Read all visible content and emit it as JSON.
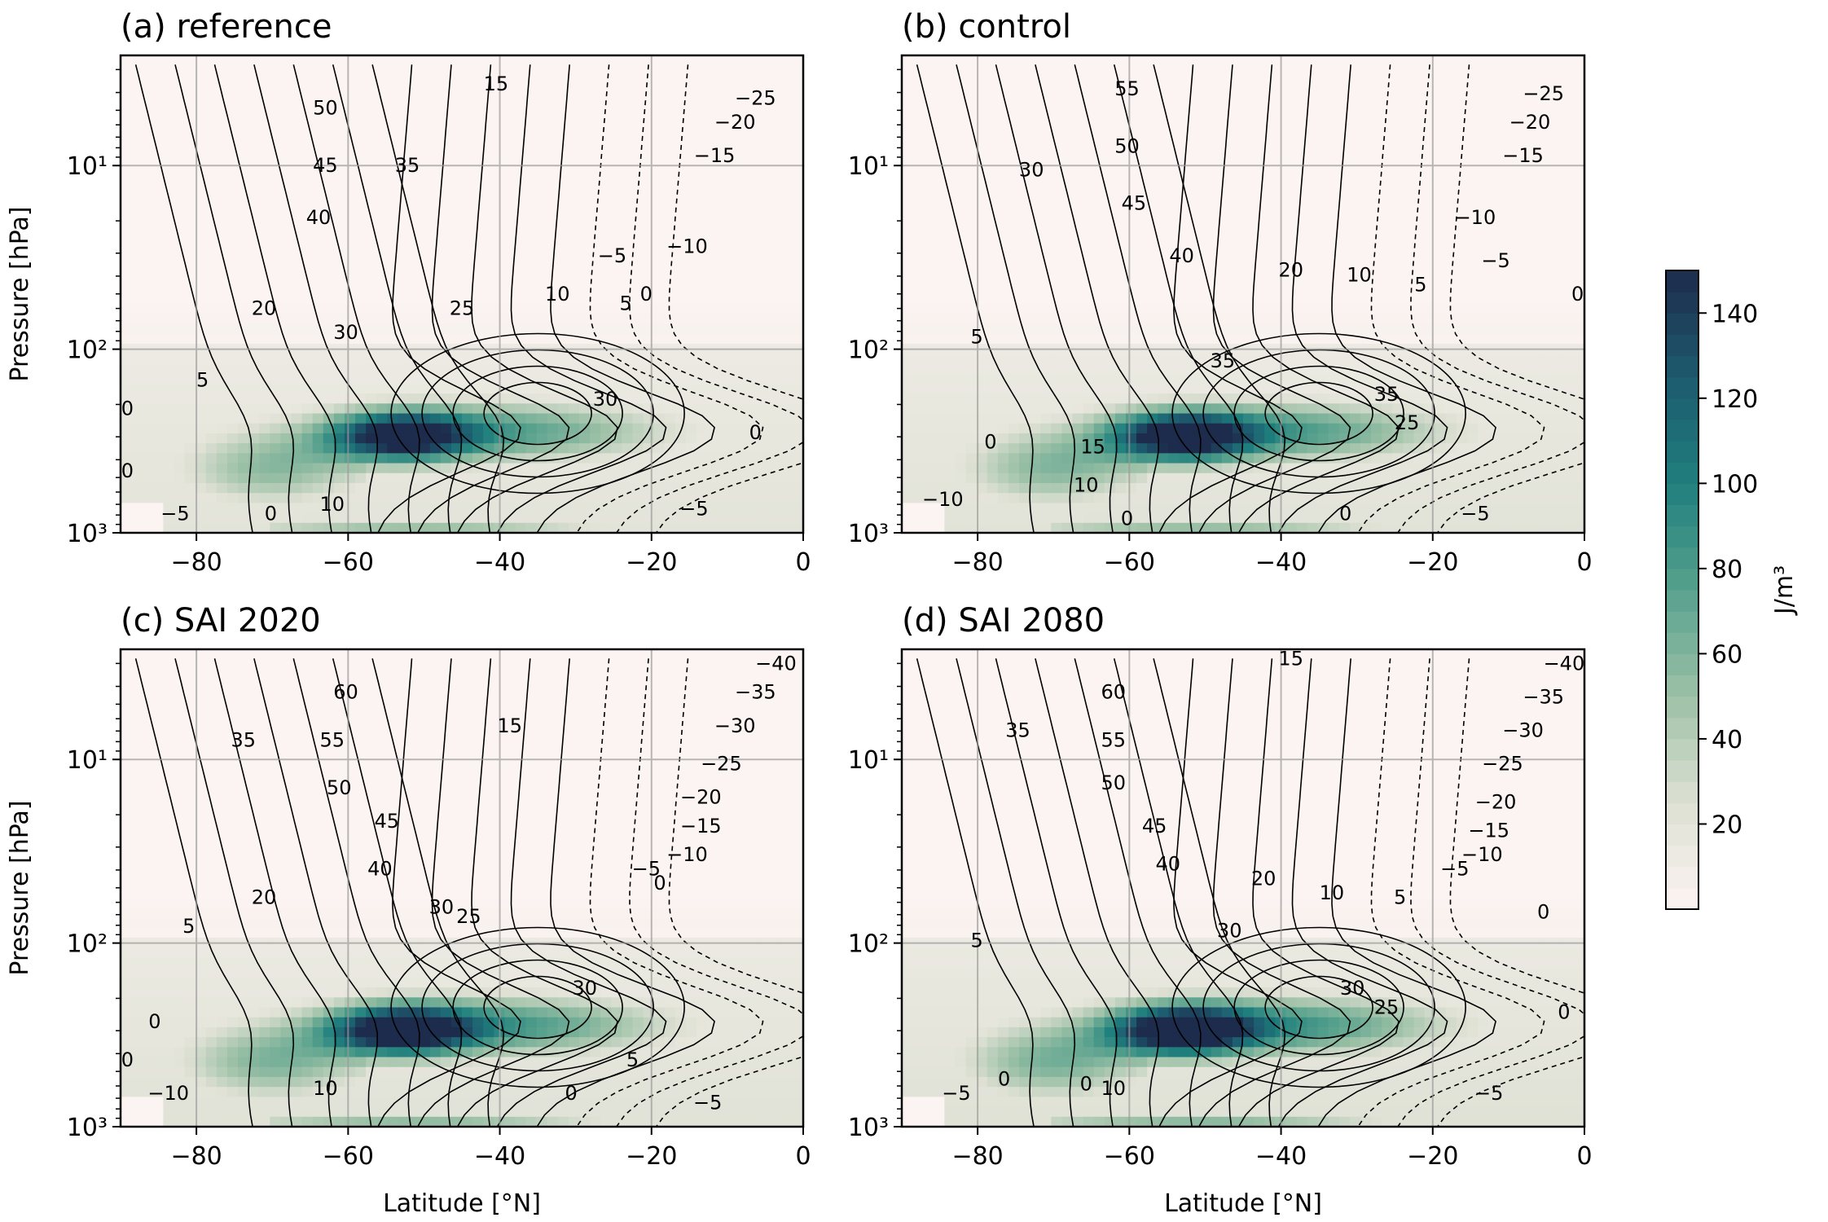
{
  "figure": {
    "panels": [
      {
        "id": "a",
        "title": "(a) reference"
      },
      {
        "id": "b",
        "title": "(b) control"
      },
      {
        "id": "c",
        "title": "(c) SAI 2020"
      },
      {
        "id": "d",
        "title": "(d) SAI 2080"
      }
    ],
    "colorbar": {
      "label": "J/m³",
      "ticks": [
        20,
        40,
        60,
        80,
        100,
        120,
        140
      ],
      "range": [
        0,
        150
      ],
      "colors": [
        "#fcf4f2",
        "#dde0d3",
        "#9dc1a7",
        "#57a18d",
        "#1f7f7d",
        "#1d5a6e",
        "#1d2b4c"
      ]
    }
  },
  "chart_data": {
    "type": "heatmap",
    "xlabel": "Latitude [°N]",
    "ylabel": "Pressure [hPa]",
    "xlim": [
      -90,
      0
    ],
    "ylim_log10": [
      0.4,
      3
    ],
    "y_log": true,
    "x_ticks": [
      -80,
      -60,
      -40,
      -20,
      0
    ],
    "y_tick_labels": [
      "10¹",
      "10²",
      "10³"
    ],
    "y_tick_values": [
      10,
      100,
      1000
    ],
    "grid": true,
    "fill_peak": {
      "lat": -53,
      "pressure_hPa": 300,
      "value": 140
    },
    "contour_labels": [
      {
        "panel": "a",
        "labels": [
          "15",
          "50",
          "45",
          "35",
          "40",
          "20",
          "30",
          "25",
          "10",
          "5",
          "0",
          "-5",
          "-10",
          "-15",
          "-20",
          "-25",
          "30",
          "0",
          "5",
          "0",
          "0",
          "-5",
          "0",
          "10",
          "-5"
        ]
      },
      {
        "panel": "b",
        "labels": [
          "55",
          "50",
          "30",
          "45",
          "40",
          "20",
          "10",
          "5",
          "0",
          "-25",
          "-20",
          "-15",
          "-10",
          "-5",
          "35",
          "35",
          "25",
          "5",
          "15",
          "10",
          "0",
          "0",
          "-10",
          "0",
          "-5"
        ]
      },
      {
        "panel": "c",
        "labels": [
          "60",
          "55",
          "35",
          "15",
          "50",
          "45",
          "40",
          "20",
          "30",
          "25",
          "5",
          "-40",
          "-35",
          "-30",
          "-25",
          "-20",
          "-15",
          "-10",
          "-5",
          "0",
          "30",
          "5",
          "0",
          "0",
          "10",
          "-10",
          "0",
          "-5"
        ]
      },
      {
        "panel": "d",
        "labels": [
          "15",
          "60",
          "55",
          "35",
          "50",
          "45",
          "40",
          "20",
          "10",
          "5",
          "30",
          "30",
          "25",
          "-40",
          "-35",
          "-30",
          "-25",
          "-20",
          "-15",
          "-10",
          "-5",
          "0",
          "0",
          "5",
          "0",
          "0",
          "10",
          "-5",
          "-5"
        ]
      }
    ]
  }
}
